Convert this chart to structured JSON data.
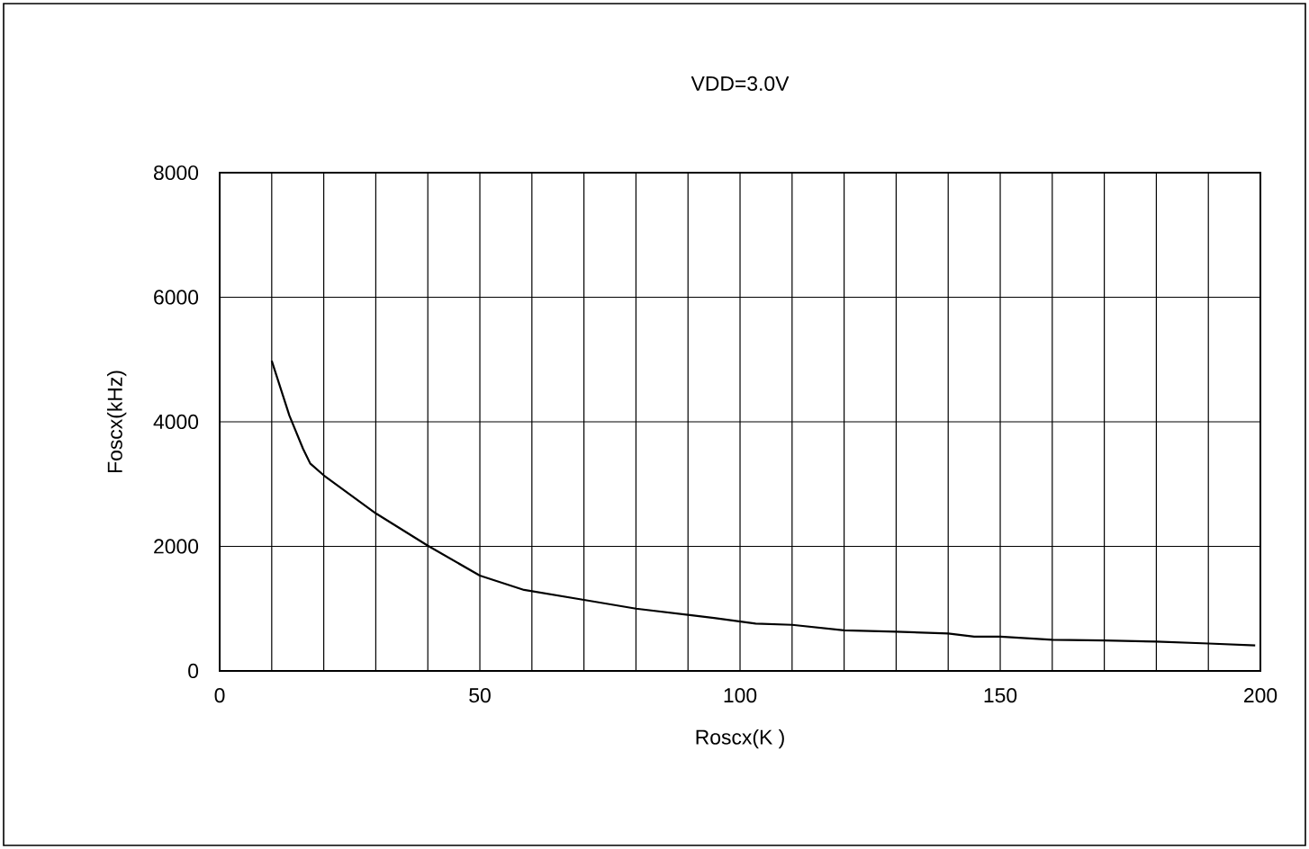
{
  "chart_data": {
    "type": "line",
    "title": "VDD=3.0V",
    "xlabel": "Roscx(K )",
    "ylabel": "Foscx(kHz)",
    "x": [
      10,
      13.4,
      16,
      17.4,
      20,
      30,
      40,
      50,
      58.5,
      70,
      80,
      90,
      95,
      103,
      110,
      120,
      130,
      140,
      145,
      150,
      160,
      170,
      180,
      190,
      199
    ],
    "series": [
      {
        "color": "#000000",
        "values": [
          4980,
          4100,
          3570,
          3330,
          3140,
          2530,
          2010,
          1530,
          1300,
          1140,
          1000,
          900,
          850,
          760,
          740,
          650,
          630,
          600,
          550,
          550,
          500,
          490,
          470,
          440,
          410
        ]
      }
    ],
    "xlim": [
      0,
      200
    ],
    "ylim": [
      0,
      8000
    ],
    "xticks": [
      0,
      {
        "value": 10,
        "label": null
      },
      {
        "value": 20,
        "label": null
      },
      {
        "value": 30,
        "label": null
      },
      {
        "value": 40,
        "label": null
      },
      50,
      {
        "value": 60,
        "label": null
      },
      {
        "value": 70,
        "label": null
      },
      {
        "value": 80,
        "label": null
      },
      {
        "value": 90,
        "label": null
      },
      100,
      {
        "value": 110,
        "label": null
      },
      {
        "value": 120,
        "label": null
      },
      {
        "value": 130,
        "label": null
      },
      {
        "value": 140,
        "label": null
      },
      150,
      {
        "value": 160,
        "label": null
      },
      {
        "value": 170,
        "label": null
      },
      {
        "value": 180,
        "label": null
      },
      {
        "value": 190,
        "label": null
      },
      200
    ],
    "yticks": [
      0,
      2000,
      4000,
      6000,
      8000
    ],
    "grid": true,
    "marker": "none",
    "line_style": "solid"
  }
}
